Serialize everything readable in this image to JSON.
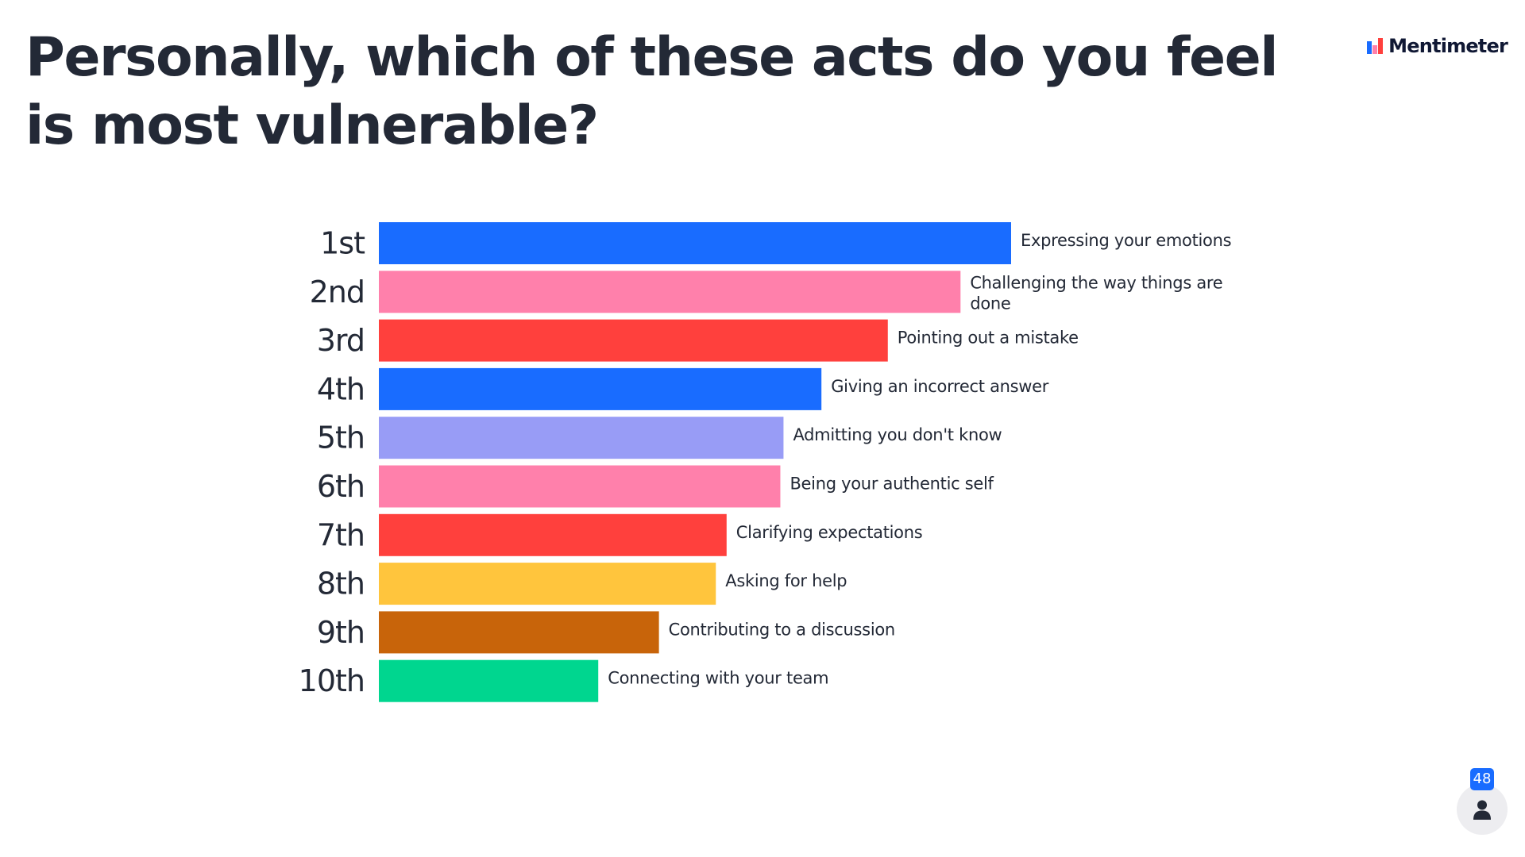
{
  "question": {
    "title": "Personally, which of these acts do you feel is most vulnerable?"
  },
  "brand": {
    "name": "Mentimeter",
    "logo_icon": "mentimeter-logo-icon",
    "logo_colors": [
      "#196cff",
      "#ff80ab",
      "#ff403d"
    ]
  },
  "participants": {
    "count": "48",
    "icon": "person-icon",
    "badge_color": "#196cff"
  },
  "chart_data": {
    "type": "bar",
    "orientation": "horizontal",
    "title": "",
    "xlabel": "",
    "ylabel": "",
    "categories": [
      "1st",
      "2nd",
      "3rd",
      "4th",
      "5th",
      "6th",
      "7th",
      "8th",
      "9th",
      "10th"
    ],
    "labels": [
      "Expressing your emotions",
      "Challenging the way things are done",
      "Pointing out a mistake",
      "Giving an incorrect answer",
      "Admitting you don't know",
      "Being your authentic self",
      "Clarifying expectations",
      "Asking for help",
      "Contributing to a discussion",
      "Connecting with your team"
    ],
    "values": [
      100,
      92,
      80.5,
      70,
      64,
      63.5,
      55,
      53.3,
      44.3,
      34.7
    ],
    "xlim": [
      0,
      100
    ],
    "colors": [
      "#196cff",
      "#ff80ab",
      "#ff403d",
      "#196cff",
      "#989cf6",
      "#ff80ab",
      "#ff403d",
      "#ffc53d",
      "#c8640a",
      "#00d68f"
    ],
    "grid": false,
    "legend": "none"
  }
}
